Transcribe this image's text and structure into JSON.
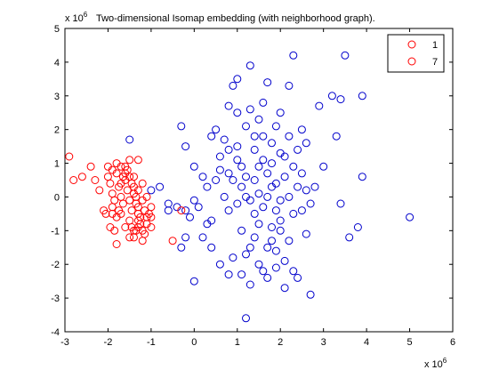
{
  "chart_data": {
    "type": "scatter",
    "title": "Two-dimensional Isomap embedding (with neighborhood graph).",
    "x_exponent_label": "x 10",
    "x_exponent_power": "6",
    "y_exponent_label": "x 10",
    "y_exponent_power": "6",
    "xlim": [
      -3,
      6
    ],
    "ylim": [
      -4,
      5
    ],
    "xticks": [
      "-3",
      "-2",
      "-1",
      "0",
      "1",
      "2",
      "3",
      "4",
      "5",
      "6"
    ],
    "yticks": [
      "-4",
      "-3",
      "-2",
      "-1",
      "0",
      "1",
      "2",
      "3",
      "4",
      "5"
    ],
    "marker": "open-circle",
    "legend_position": "top-right",
    "series": [
      {
        "name": "1",
        "color": "#ff0000",
        "points": [
          [
            -2.9,
            1.2
          ],
          [
            -2.8,
            0.5
          ],
          [
            -2.6,
            0.6
          ],
          [
            -2.4,
            0.9
          ],
          [
            -2.3,
            0.5
          ],
          [
            -2.2,
            0.2
          ],
          [
            -2.1,
            -0.4
          ],
          [
            -2.0,
            0.9
          ],
          [
            -1.9,
            0.8
          ],
          [
            -1.9,
            -0.3
          ],
          [
            -1.8,
            1.0
          ],
          [
            -1.8,
            -1.4
          ],
          [
            -1.7,
            0.9
          ],
          [
            -1.7,
            -0.5
          ],
          [
            -1.6,
            0.7
          ],
          [
            -1.6,
            -0.9
          ],
          [
            -1.5,
            1.1
          ],
          [
            -1.5,
            -1.2
          ],
          [
            -1.4,
            0.6
          ],
          [
            -1.4,
            -1.0
          ],
          [
            -1.3,
            1.1
          ],
          [
            -1.3,
            0.2
          ],
          [
            -1.3,
            -0.7
          ],
          [
            -1.2,
            0.4
          ],
          [
            -1.2,
            -1.3
          ],
          [
            -1.1,
            0.0
          ],
          [
            -1.1,
            -0.6
          ],
          [
            -1.0,
            -0.3
          ],
          [
            -1.0,
            -0.9
          ],
          [
            -0.5,
            -1.3
          ],
          [
            -0.3,
            -0.4
          ],
          [
            -2.0,
            0.6
          ],
          [
            -1.95,
            0.4
          ],
          [
            -1.9,
            0.1
          ],
          [
            -1.85,
            -0.1
          ],
          [
            -1.8,
            0.7
          ],
          [
            -1.75,
            0.3
          ],
          [
            -1.7,
            0.0
          ],
          [
            -1.65,
            -0.2
          ],
          [
            -1.6,
            0.5
          ],
          [
            -1.55,
            0.2
          ],
          [
            -1.5,
            -0.1
          ],
          [
            -1.45,
            -0.4
          ],
          [
            -1.4,
            0.3
          ],
          [
            -1.35,
            0.0
          ],
          [
            -1.3,
            -0.3
          ],
          [
            -1.25,
            -0.6
          ],
          [
            -1.2,
            -0.1
          ],
          [
            -1.15,
            -0.4
          ],
          [
            -1.1,
            -0.8
          ],
          [
            -1.05,
            -0.5
          ],
          [
            -1.0,
            -0.6
          ],
          [
            -1.6,
            0.9
          ],
          [
            -1.55,
            0.8
          ],
          [
            -1.5,
            0.6
          ],
          [
            -1.45,
            0.4
          ],
          [
            -1.4,
            0.1
          ],
          [
            -1.35,
            -0.2
          ],
          [
            -1.3,
            -0.5
          ],
          [
            -1.25,
            -0.8
          ],
          [
            -1.2,
            -1.0
          ],
          [
            -1.15,
            -1.1
          ],
          [
            -1.65,
            0.6
          ],
          [
            -1.7,
            0.4
          ],
          [
            -1.75,
            -0.4
          ],
          [
            -1.8,
            -0.6
          ],
          [
            -1.85,
            -1.0
          ],
          [
            -1.5,
            -0.7
          ],
          [
            -1.45,
            -0.9
          ],
          [
            -1.4,
            -1.2
          ],
          [
            -1.35,
            -1.0
          ],
          [
            -1.3,
            -0.9
          ],
          [
            -1.9,
            -0.5
          ],
          [
            -2.05,
            -0.5
          ],
          [
            -1.95,
            -0.9
          ]
        ]
      },
      {
        "name": "7",
        "color": "#0000cc",
        "points": [
          [
            -1.5,
            1.7
          ],
          [
            -1.0,
            0.2
          ],
          [
            -0.8,
            0.3
          ],
          [
            -0.6,
            -0.4
          ],
          [
            -0.6,
            -0.2
          ],
          [
            -0.4,
            -0.3
          ],
          [
            -0.3,
            -1.5
          ],
          [
            -0.2,
            -0.4
          ],
          [
            -0.2,
            -1.2
          ],
          [
            -0.1,
            -0.6
          ],
          [
            0.0,
            -0.1
          ],
          [
            0.0,
            -2.5
          ],
          [
            0.1,
            -0.3
          ],
          [
            0.2,
            -1.2
          ],
          [
            0.3,
            -0.8
          ],
          [
            0.3,
            0.3
          ],
          [
            0.4,
            1.8
          ],
          [
            0.4,
            -1.5
          ],
          [
            0.5,
            2.0
          ],
          [
            0.6,
            1.2
          ],
          [
            0.6,
            0.8
          ],
          [
            0.7,
            0.0
          ],
          [
            0.8,
            -0.4
          ],
          [
            0.8,
            1.4
          ],
          [
            0.9,
            3.3
          ],
          [
            0.9,
            -1.8
          ],
          [
            1.0,
            1.5
          ],
          [
            1.0,
            3.5
          ],
          [
            1.1,
            -1.0
          ],
          [
            1.1,
            0.9
          ],
          [
            1.2,
            0.0
          ],
          [
            1.2,
            -3.6
          ],
          [
            1.3,
            2.6
          ],
          [
            1.3,
            3.9
          ],
          [
            1.4,
            1.4
          ],
          [
            1.4,
            -0.5
          ],
          [
            1.5,
            0.9
          ],
          [
            1.5,
            2.3
          ],
          [
            1.6,
            2.8
          ],
          [
            1.6,
            -2.2
          ],
          [
            1.7,
            0.0
          ],
          [
            1.7,
            3.4
          ],
          [
            1.7,
            -1.5
          ],
          [
            1.8,
            1.0
          ],
          [
            1.8,
            -0.9
          ],
          [
            1.9,
            0.4
          ],
          [
            1.9,
            2.1
          ],
          [
            2.0,
            -0.7
          ],
          [
            2.0,
            2.5
          ],
          [
            2.1,
            1.2
          ],
          [
            2.1,
            -1.9
          ],
          [
            2.2,
            0.0
          ],
          [
            2.2,
            3.3
          ],
          [
            2.3,
            4.2
          ],
          [
            2.3,
            -0.5
          ],
          [
            2.4,
            1.4
          ],
          [
            2.4,
            -2.4
          ],
          [
            2.5,
            0.7
          ],
          [
            2.5,
            2.0
          ],
          [
            2.6,
            -1.1
          ],
          [
            2.6,
            1.6
          ],
          [
            2.7,
            -0.2
          ],
          [
            2.7,
            -2.9
          ],
          [
            2.8,
            0.3
          ],
          [
            2.9,
            2.7
          ],
          [
            3.0,
            0.9
          ],
          [
            3.2,
            3.0
          ],
          [
            3.3,
            1.8
          ],
          [
            3.4,
            2.9
          ],
          [
            3.5,
            4.2
          ],
          [
            3.6,
            -1.2
          ],
          [
            3.8,
            -0.9
          ],
          [
            3.9,
            3.0
          ],
          [
            3.9,
            0.6
          ],
          [
            5.0,
            -0.6
          ],
          [
            3.4,
            -0.2
          ],
          [
            2.0,
            -0.1
          ],
          [
            1.8,
            0.3
          ],
          [
            1.6,
            -0.3
          ],
          [
            1.5,
            0.1
          ],
          [
            1.4,
            0.5
          ],
          [
            1.3,
            -0.1
          ],
          [
            1.2,
            0.6
          ],
          [
            1.1,
            0.3
          ],
          [
            1.0,
            -0.2
          ],
          [
            0.9,
            0.5
          ],
          [
            0.8,
            0.7
          ],
          [
            1.9,
            -0.4
          ],
          [
            2.1,
            0.6
          ],
          [
            1.7,
            0.7
          ],
          [
            1.6,
            1.1
          ],
          [
            1.5,
            -0.8
          ],
          [
            1.4,
            -1.2
          ],
          [
            1.3,
            -1.5
          ],
          [
            1.2,
            -1.7
          ],
          [
            1.8,
            -1.3
          ],
          [
            1.9,
            -1.6
          ],
          [
            2.0,
            -1.0
          ],
          [
            2.2,
            -1.3
          ],
          [
            2.3,
            0.9
          ],
          [
            2.4,
            0.3
          ],
          [
            2.5,
            -0.4
          ],
          [
            2.6,
            0.2
          ],
          [
            1.0,
            1.1
          ],
          [
            0.7,
            1.7
          ],
          [
            0.5,
            0.5
          ],
          [
            0.4,
            -0.7
          ],
          [
            0.2,
            0.6
          ],
          [
            0.0,
            0.9
          ],
          [
            -0.2,
            1.5
          ],
          [
            -0.3,
            2.1
          ],
          [
            1.1,
            -2.3
          ],
          [
            1.3,
            -2.6
          ],
          [
            1.5,
            -2.0
          ],
          [
            1.7,
            -2.4
          ],
          [
            1.9,
            -2.1
          ],
          [
            2.1,
            -2.7
          ],
          [
            2.3,
            -2.2
          ],
          [
            0.6,
            -2.0
          ],
          [
            0.8,
            -2.3
          ],
          [
            1.6,
            1.8
          ],
          [
            1.8,
            1.6
          ],
          [
            2.0,
            1.3
          ],
          [
            2.2,
            1.8
          ],
          [
            1.4,
            1.8
          ],
          [
            1.2,
            2.1
          ],
          [
            1.0,
            2.5
          ],
          [
            0.8,
            2.7
          ]
        ]
      }
    ]
  }
}
